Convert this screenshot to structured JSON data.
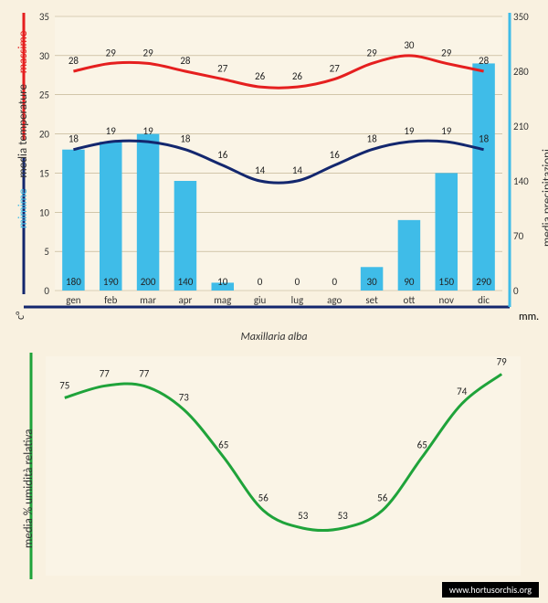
{
  "caption": "Maxillaria alba",
  "footer": "www.hortusorchis.org",
  "palette": {
    "bg": "#f9f1e0",
    "panel": "#faf4e6",
    "axis": "#000000",
    "grid": "#b9aa86",
    "bar": "#3fbce8",
    "line_max": "#e51f1f",
    "line_min": "#13276e",
    "humidity": "#1fa33a",
    "text": "#333333"
  },
  "top_chart": {
    "type": "bar+lines",
    "months": [
      "gen",
      "feb",
      "mar",
      "apr",
      "mag",
      "giu",
      "lug",
      "ago",
      "set",
      "ott",
      "nov",
      "dic"
    ],
    "left_axis": {
      "label": "media temperature",
      "unit": "c°",
      "min": 0,
      "max": 35,
      "ticks": [
        0,
        5,
        10,
        15,
        20,
        25,
        30,
        35
      ]
    },
    "right_axis": {
      "label": "media precipitazioni",
      "unit": "mm.",
      "min": 0,
      "max": 350,
      "ticks": [
        0,
        70,
        140,
        210,
        280,
        350
      ]
    },
    "border_top_color": "#e51f1f",
    "border_bottom_color": "#13276e",
    "border_right_color": "#3fbce8",
    "left_sublabels": [
      {
        "text": "massime",
        "color": "#e51f1f"
      },
      {
        "text": "mimime",
        "color": "#3fbce8"
      }
    ],
    "precip_mm": [
      180,
      190,
      200,
      140,
      10,
      0,
      0,
      0,
      30,
      90,
      150,
      290
    ],
    "temp_max": [
      28,
      29,
      29,
      28,
      27,
      26,
      26,
      27,
      29,
      30,
      29,
      28
    ],
    "temp_min": [
      18,
      19,
      19,
      18,
      16,
      14,
      14,
      16,
      18,
      19,
      19,
      18
    ],
    "bar_width": 0.6,
    "label_fontsize": 11,
    "tick_fontsize": 11
  },
  "bottom_chart": {
    "type": "line",
    "left_axis": {
      "label": "media % umidità relativa"
    },
    "border_left_color": "#1fa33a",
    "humidity": [
      75,
      77,
      77,
      73,
      65,
      56,
      53,
      53,
      56,
      65,
      74,
      79
    ],
    "label_fontsize": 11,
    "y_min": 45,
    "y_max": 82
  }
}
